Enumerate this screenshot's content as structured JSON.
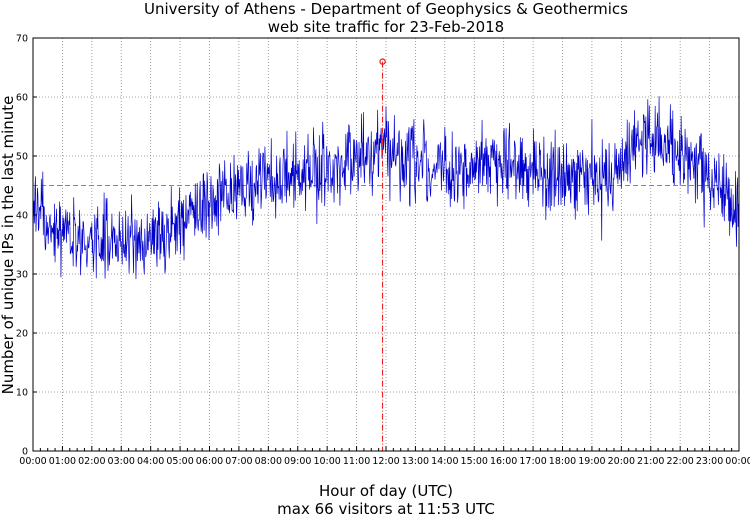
{
  "chart_data": {
    "type": "line",
    "title": "University of Athens - Department of Geophysics & Geothermics",
    "subtitle": "web site traffic for 23-Feb-2018",
    "xlabel": "Hour of day (UTC)",
    "xlabel_sub": "max 66 visitors at 11:53 UTC",
    "ylabel": "Number of unique IPs in the last minute",
    "xlim": [
      "00:00",
      "24:00"
    ],
    "ylim": [
      0,
      70
    ],
    "x_ticks": [
      "00:00",
      "01:00",
      "02:00",
      "03:00",
      "04:00",
      "05:00",
      "06:00",
      "07:00",
      "08:00",
      "09:00",
      "10:00",
      "11:00",
      "12:00",
      "13:00",
      "14:00",
      "15:00",
      "16:00",
      "17:00",
      "18:00",
      "19:00",
      "20:00",
      "21:00",
      "22:00",
      "23:00",
      "00:00"
    ],
    "y_ticks": [
      0,
      10,
      20,
      30,
      40,
      50,
      60,
      70
    ],
    "grid": true,
    "line_color": "#0000cc",
    "mean_line": {
      "value": 45,
      "color": "#22cc22"
    },
    "max_marker": {
      "time": "11:53",
      "value": 66,
      "color": "#ee1111"
    },
    "series": [
      {
        "x_hours": [
          0,
          0.5,
          1,
          1.5,
          2,
          2.5,
          3,
          3.5,
          4,
          4.5,
          5,
          5.5,
          6,
          6.5,
          7,
          7.5,
          8,
          8.5,
          9,
          9.5,
          10,
          10.5,
          11,
          11.5,
          12,
          12.5,
          13,
          13.5,
          14,
          14.5,
          15,
          15.5,
          16,
          16.5,
          17,
          17.5,
          18,
          18.5,
          19,
          19.5,
          20,
          20.5,
          21,
          21.5,
          22,
          22.5,
          23,
          23.5,
          24
        ],
        "values": [
          40,
          38,
          37,
          36,
          35,
          36,
          36,
          35,
          36,
          37,
          39,
          41,
          42,
          43,
          44,
          45,
          46,
          46,
          47,
          47,
          48,
          48,
          50,
          51,
          51,
          50,
          49,
          48,
          48,
          48,
          48,
          49,
          48,
          48,
          47,
          47,
          46,
          47,
          46,
          47,
          49,
          51,
          53,
          51,
          49,
          48,
          46,
          43,
          40
        ]
      }
    ]
  }
}
